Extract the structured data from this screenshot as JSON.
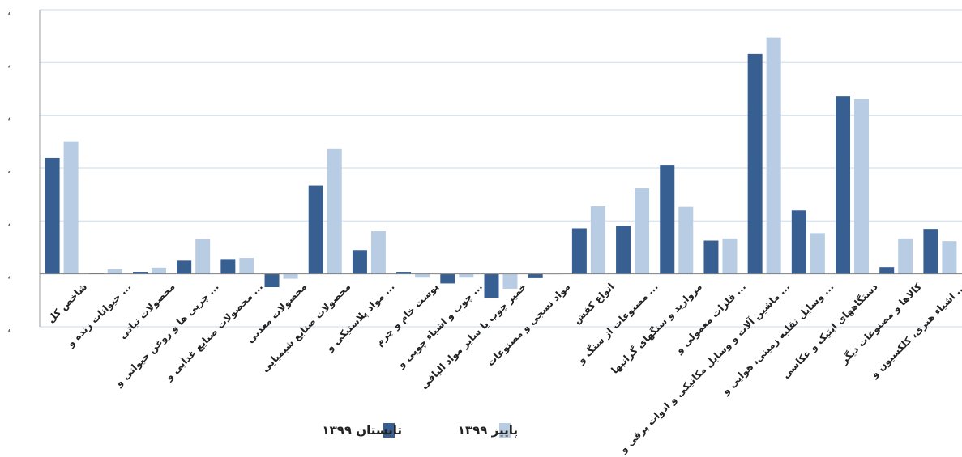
{
  "chart_data": {
    "type": "bar",
    "title": "",
    "xlabel": "",
    "ylabel": "",
    "ylim": [
      -1,
      5
    ],
    "grid": true,
    "legend_position": "bottom",
    "y_tick_labels": [
      "،",
      "،",
      "،",
      "،",
      "،",
      "،",
      "،"
    ],
    "categories": [
      "شاخص کل",
      "حیوانات زنده و ...",
      "محصولات نباتی",
      "چربی ها و روغن حیوانی و ...",
      "محصولات صنایع غذایی و ...",
      "محصولات معدنی",
      "محصولات صنایع شیمیایی",
      "مواد پلاستیکی و ...",
      "پوست خام و چرم",
      "چوب و اشیاء چوبی و ...",
      "خمیر چوب یا سایر مواد الیافی",
      "مواد نسجی و مصنوعات",
      "انواع کفش",
      "مصنوعات از سنگ و ...",
      "مروارید و سنگهای گرانبها",
      "فلزات معمولی و ...",
      "ماشین آلات و وسایل مکانیکی و ادوات برقی و ...",
      "وسایل نقلیه زمینی، هوایی و ...",
      "دستگاههای اپتیک و عکاسی",
      "کالاها و مصنوعات دیگر",
      "اشیاء هنری، کلکسیون و ..."
    ],
    "series": [
      {
        "name": "تابستان ۱۳۹۹",
        "color": "#375f92",
        "values": [
          2.2,
          0.01,
          0.04,
          0.25,
          0.28,
          -0.25,
          1.67,
          0.45,
          0.04,
          -0.18,
          -0.45,
          -0.08,
          0.86,
          0.91,
          2.06,
          0.63,
          4.16,
          1.2,
          3.36,
          0.13,
          0.85
        ]
      },
      {
        "name": "پاییز ۱۳۹۹",
        "color": "#b8cce4",
        "values": [
          2.51,
          0.09,
          0.12,
          0.66,
          0.3,
          -0.09,
          2.37,
          0.81,
          -0.07,
          -0.07,
          -0.28,
          0.0,
          1.28,
          1.62,
          1.27,
          0.67,
          4.47,
          0.77,
          3.31,
          0.67,
          0.62
        ]
      }
    ]
  }
}
